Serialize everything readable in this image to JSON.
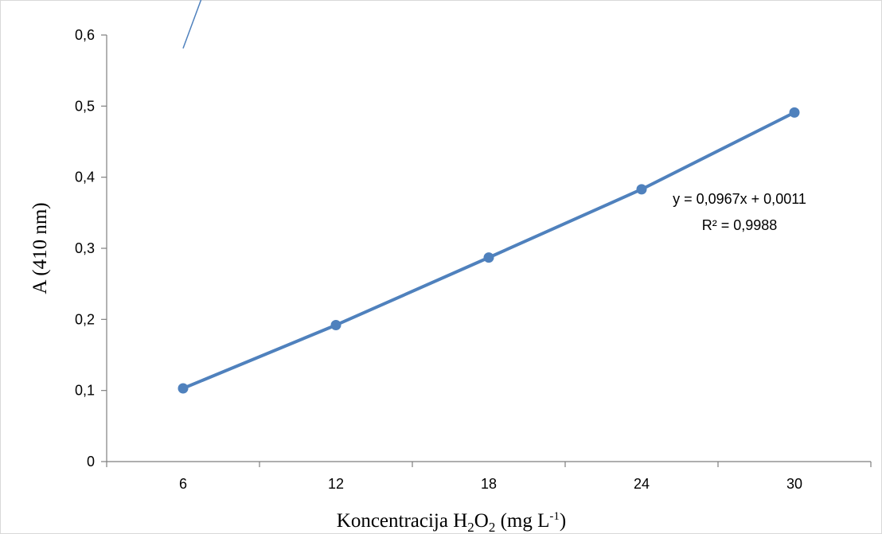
{
  "chart_data": {
    "type": "line",
    "title": "",
    "xlabel": {
      "main": "Koncentracija H",
      "sub1": "2",
      "mid": "O",
      "sub2": "2",
      "unit": " (mg L",
      "sup": "-1",
      "close": ")"
    },
    "ylabel": "A (410 nm)",
    "categories": [
      "6",
      "12",
      "18",
      "24",
      "30"
    ],
    "x": [
      6,
      12,
      18,
      24,
      30
    ],
    "series": [
      {
        "values": [
          0.103,
          0.192,
          0.287,
          0.383,
          0.491
        ]
      }
    ],
    "trendline": {
      "type": "linear",
      "slope": 0.0967,
      "intercept": 0.0011,
      "equation": "y = 0,0967x + 0,0011",
      "r2": "R² = 0,9988"
    },
    "ylim": [
      0,
      0.6
    ],
    "yticks": [
      0,
      0.1,
      0.2,
      0.3,
      0.4,
      0.5,
      0.6
    ],
    "ytick_labels": [
      "0",
      "0,1",
      "0,2",
      "0,3",
      "0,4",
      "0,5",
      "0,6"
    ],
    "grid": false,
    "legend": "none",
    "colors": {
      "series": "#4f81bd",
      "axis": "#7f7f7f"
    }
  }
}
